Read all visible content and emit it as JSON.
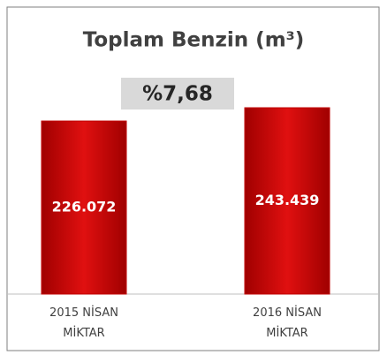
{
  "chart_data": {
    "type": "bar",
    "title": "Toplam Benzin (m³)",
    "annotation": "%7,68",
    "categories": [
      "2015 NİSAN MİKTAR",
      "2016 NİSAN MİKTAR"
    ],
    "values": [
      226072,
      243439
    ],
    "value_labels": [
      "226.072",
      "243.439"
    ],
    "color": "#c00000"
  }
}
